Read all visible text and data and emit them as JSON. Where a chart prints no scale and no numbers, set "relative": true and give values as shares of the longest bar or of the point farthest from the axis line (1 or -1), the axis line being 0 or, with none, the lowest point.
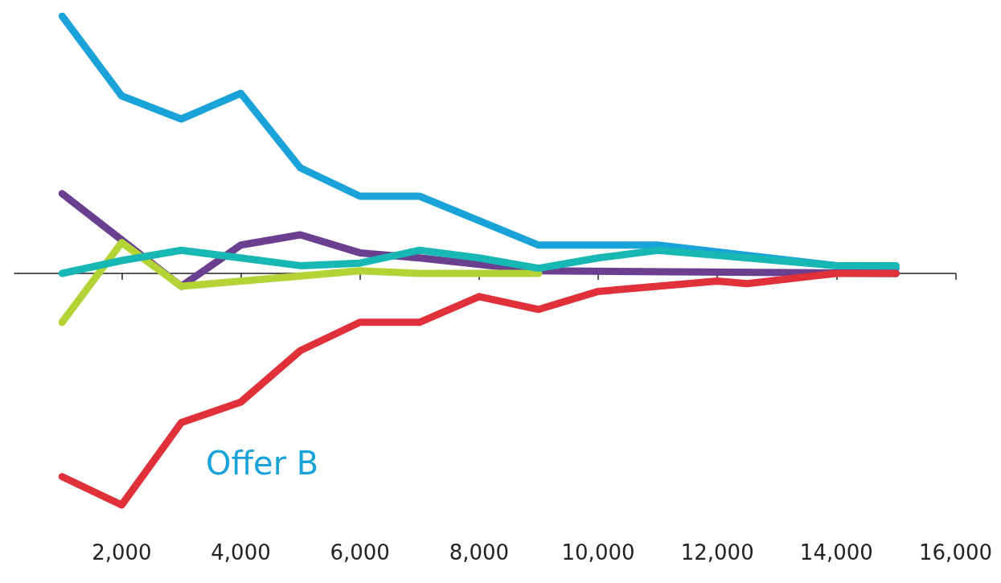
{
  "chart_data": {
    "type": "line",
    "relative": true,
    "xlim": [
      200,
      16000
    ],
    "xticks": [
      {
        "value": 2000,
        "label": "2,000"
      },
      {
        "value": 4000,
        "label": "4,000"
      },
      {
        "value": 6000,
        "label": "6,000"
      },
      {
        "value": 8000,
        "label": "8,000"
      },
      {
        "value": 10000,
        "label": "10,000"
      },
      {
        "value": 12000,
        "label": "12,000"
      },
      {
        "value": 14000,
        "label": "14,000"
      },
      {
        "value": 16000,
        "label": "16,000"
      }
    ],
    "grid": false,
    "legend": false,
    "marker": "none",
    "line_style": "solid",
    "series": [
      {
        "name": "Offer B",
        "color": "#1aa3d9",
        "x": [
          1000,
          2000,
          3000,
          4000,
          5000,
          6000,
          7000,
          9000,
          11000,
          14000,
          15000
        ],
        "values": [
          1,
          0.69,
          0.6,
          0.7,
          0.41,
          0.3,
          0.3,
          0.11,
          0.11,
          0.03,
          0.02
        ]
      },
      {
        "color": "#6b3f8f",
        "x": [
          1000,
          2000,
          3000,
          4000,
          5000,
          6000,
          7000,
          9000,
          15000
        ],
        "values": [
          0.31,
          0.13,
          -0.05,
          0.11,
          0.15,
          0.08,
          0.06,
          0.01,
          0
        ]
      },
      {
        "color": "#b5d334",
        "x": [
          1000,
          2000,
          3000,
          5000,
          6000,
          7000,
          9000
        ],
        "values": [
          -0.19,
          0.12,
          -0.05,
          -0.01,
          0.01,
          0,
          0
        ]
      },
      {
        "color": "#17b8b4",
        "x": [
          1000,
          2000,
          3000,
          4000,
          5000,
          6000,
          7000,
          8000,
          9000,
          10000,
          11000,
          12000,
          14000,
          15000
        ],
        "values": [
          0,
          0.05,
          0.09,
          0.06,
          0.03,
          0.04,
          0.09,
          0.06,
          0.02,
          0.06,
          0.09,
          0.07,
          0.03,
          0.03
        ]
      },
      {
        "color": "#e0303a",
        "x": [
          1000,
          2000,
          3000,
          4000,
          5000,
          6000,
          7000,
          8000,
          9000,
          10000,
          11000,
          12000,
          12500,
          14000,
          15000
        ],
        "values": [
          -0.79,
          -0.9,
          -0.58,
          -0.5,
          -0.3,
          -0.19,
          -0.19,
          -0.09,
          -0.14,
          -0.07,
          -0.05,
          -0.03,
          -0.04,
          0,
          0
        ]
      }
    ]
  }
}
